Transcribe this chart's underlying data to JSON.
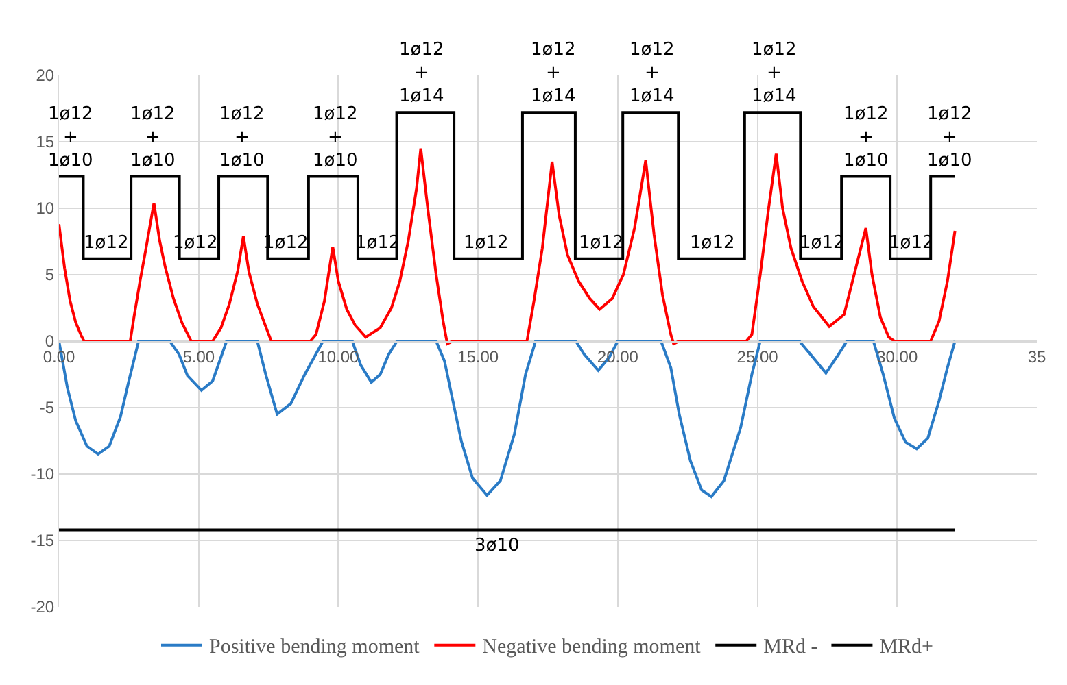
{
  "chart_data": {
    "type": "line",
    "legend": "bottom",
    "grid": true,
    "marker": "none",
    "line_style": "solid",
    "xlim": [
      0,
      35
    ],
    "xticks": [
      {
        "value": 0,
        "label": "0.00"
      },
      {
        "value": 5,
        "label": "5.00"
      },
      {
        "value": 10,
        "label": "10.00"
      },
      {
        "value": 15,
        "label": "15.00"
      },
      {
        "value": 20,
        "label": "20.00"
      },
      {
        "value": 25,
        "label": "25.00"
      },
      {
        "value": 30,
        "label": "30.00"
      },
      {
        "value": 35,
        "label": "35"
      }
    ],
    "ylim": [
      -20,
      20
    ],
    "yticks": [
      -20,
      -15,
      -10,
      -5,
      0,
      5,
      10,
      15,
      20
    ],
    "series": [
      {
        "name": "Positive bending moment",
        "color": "#2a7bc6",
        "x": [
          0,
          0.3,
          0.6,
          1.0,
          1.4,
          1.8,
          2.2,
          2.5,
          2.85,
          3.2,
          3.97,
          4.3,
          4.6,
          5.1,
          5.5,
          5.8,
          6.0,
          7.1,
          7.4,
          7.81,
          8.3,
          8.8,
          9.45,
          10.5,
          10.8,
          11.18,
          11.5,
          11.8,
          12.1,
          13.5,
          13.8,
          14.1,
          14.4,
          14.8,
          15.32,
          15.8,
          16.3,
          16.7,
          17.06,
          18.5,
          18.8,
          19.3,
          19.7,
          20.0,
          21.55,
          21.9,
          22.2,
          22.6,
          23.0,
          23.35,
          23.8,
          24.4,
          24.8,
          25.1,
          26.5,
          26.9,
          27.45,
          27.9,
          28.2,
          29.15,
          29.5,
          29.9,
          30.3,
          30.7,
          31.1,
          31.5,
          31.8,
          32.07
        ],
        "values": [
          0,
          -3.5,
          -6,
          -7.9,
          -8.5,
          -7.9,
          -5.7,
          -3,
          0,
          0,
          0,
          -1,
          -2.6,
          -3.7,
          -3,
          -1.2,
          0,
          0,
          -2.5,
          -5.5,
          -4.7,
          -2.5,
          0,
          0,
          -1.8,
          -3.1,
          -2.5,
          -1,
          0,
          0,
          -1.5,
          -4.5,
          -7.5,
          -10.3,
          -11.6,
          -10.5,
          -7,
          -2.5,
          0,
          0,
          -1,
          -2.2,
          -1.2,
          0,
          0,
          -2,
          -5.5,
          -9,
          -11.2,
          -11.7,
          -10.5,
          -6.5,
          -2.5,
          0,
          0,
          -1,
          -2.4,
          -1,
          0,
          0,
          -2.5,
          -5.8,
          -7.6,
          -8.1,
          -7.3,
          -4.5,
          -2,
          0
        ]
      },
      {
        "name": "Negative bending moment",
        "color": "#ff0000",
        "x": [
          0,
          0.2,
          0.4,
          0.6,
          0.8,
          0.9,
          2.55,
          2.7,
          2.9,
          3.1,
          3.3,
          3.4,
          3.6,
          3.8,
          4.1,
          4.4,
          4.73,
          5.5,
          5.8,
          6.1,
          6.4,
          6.6,
          6.8,
          7.1,
          7.4,
          7.6,
          9.0,
          9.2,
          9.5,
          9.8,
          10.0,
          10.3,
          10.6,
          10.98,
          11.5,
          11.9,
          12.2,
          12.5,
          12.8,
          12.95,
          13.2,
          13.5,
          13.75,
          13.9,
          14.1,
          16.75,
          17.0,
          17.3,
          17.65,
          17.9,
          18.2,
          18.6,
          19.0,
          19.35,
          19.8,
          20.2,
          20.6,
          21.0,
          21.3,
          21.6,
          21.9,
          22.0,
          22.2,
          24.6,
          24.8,
          25.1,
          25.4,
          25.67,
          25.9,
          26.2,
          26.6,
          27.0,
          27.57,
          28.1,
          28.4,
          28.88,
          29.1,
          29.4,
          29.7,
          29.9,
          31.2,
          31.5,
          31.8,
          32.07
        ],
        "values": [
          8.8,
          5.5,
          3,
          1.4,
          0.4,
          0,
          0,
          2,
          4.5,
          6.8,
          9.2,
          10.4,
          7.6,
          5.6,
          3.2,
          1.4,
          0,
          0,
          1,
          2.8,
          5.3,
          7.9,
          5.2,
          2.8,
          1.1,
          0,
          0,
          0.5,
          3,
          7.1,
          4.5,
          2.4,
          1.2,
          0.3,
          1,
          2.5,
          4.5,
          7.5,
          11.5,
          14.5,
          10,
          5,
          1.5,
          -0.2,
          0,
          0,
          3,
          7,
          13.5,
          9.5,
          6.5,
          4.5,
          3.2,
          2.4,
          3.2,
          5,
          8.5,
          13.6,
          8,
          3.5,
          0.5,
          -0.2,
          0,
          0,
          0.5,
          5,
          10,
          14.1,
          10,
          7,
          4.5,
          2.6,
          1.1,
          2,
          4.5,
          8.5,
          5,
          1.8,
          0.3,
          0,
          0,
          1.5,
          4.5,
          8.3
        ]
      },
      {
        "name": "MRd -",
        "color": "#000000",
        "x": [
          0,
          0.87,
          0.87,
          2.58,
          2.58,
          4.31,
          4.31,
          5.72,
          5.72,
          7.47,
          7.47,
          8.93,
          8.93,
          10.7,
          10.7,
          12.09,
          12.09,
          14.14,
          14.14,
          16.59,
          16.59,
          18.48,
          18.48,
          20.18,
          20.18,
          22.17,
          22.17,
          24.54,
          24.54,
          26.54,
          26.54,
          28.01,
          28.01,
          29.75,
          29.75,
          31.2,
          31.2,
          32.07
        ],
        "values": [
          12.4,
          12.4,
          6.2,
          6.2,
          12.4,
          12.4,
          6.2,
          6.2,
          12.4,
          12.4,
          6.2,
          6.2,
          12.4,
          12.4,
          6.2,
          6.2,
          17.2,
          17.2,
          6.2,
          6.2,
          17.2,
          17.2,
          6.2,
          6.2,
          17.2,
          17.2,
          6.2,
          6.2,
          17.2,
          17.2,
          6.2,
          6.2,
          12.4,
          12.4,
          6.2,
          6.2,
          12.4,
          12.4
        ]
      },
      {
        "name": "MRd+",
        "color": "#000000",
        "x": [
          0,
          32.07
        ],
        "values": [
          -14.2,
          -14.2
        ]
      }
    ],
    "annotations": [
      {
        "text": "1ø12\n+\n1ø10",
        "x": 0.44,
        "y": 12.4
      },
      {
        "text": "1ø12\n+\n1ø10",
        "x": 3.36,
        "y": 12.4
      },
      {
        "text": "1ø12\n+\n1ø10",
        "x": 6.56,
        "y": 12.4
      },
      {
        "text": "1ø12\n+\n1ø10",
        "x": 9.9,
        "y": 12.4
      },
      {
        "text": "1ø12\n+\n1ø14",
        "x": 13.0,
        "y": 17.2
      },
      {
        "text": "1ø12\n+\n1ø14",
        "x": 17.7,
        "y": 17.2
      },
      {
        "text": "1ø12\n+\n1ø14",
        "x": 21.25,
        "y": 17.2
      },
      {
        "text": "1ø12\n+\n1ø14",
        "x": 25.6,
        "y": 17.2
      },
      {
        "text": "1ø12\n+\n1ø10",
        "x": 28.9,
        "y": 12.4
      },
      {
        "text": "1ø12\n+\n1ø10",
        "x": 31.9,
        "y": 12.4
      },
      {
        "text": "1ø12",
        "x": 1.7,
        "y": 6.2
      },
      {
        "text": "1ø12",
        "x": 4.9,
        "y": 6.2
      },
      {
        "text": "1ø12",
        "x": 8.1,
        "y": 6.2
      },
      {
        "text": "1ø12",
        "x": 11.4,
        "y": 6.2
      },
      {
        "text": "1ø12",
        "x": 15.3,
        "y": 6.2
      },
      {
        "text": "1ø12",
        "x": 19.4,
        "y": 6.2
      },
      {
        "text": "1ø12",
        "x": 23.4,
        "y": 6.2
      },
      {
        "text": "1ø12",
        "x": 27.3,
        "y": 6.2
      },
      {
        "text": "1ø12",
        "x": 30.5,
        "y": 6.2
      },
      {
        "text": "3ø10",
        "x": 15.7,
        "y": -14.2
      }
    ]
  }
}
